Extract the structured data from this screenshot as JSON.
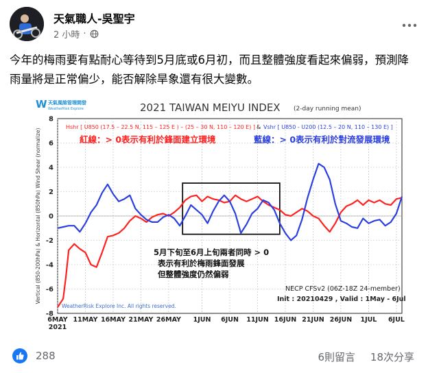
{
  "post": {
    "author": "天氣職人-吳聖宇",
    "time": "2 小時",
    "privacy_icon": "globe-icon",
    "more_icon": "more-dots-icon",
    "text": "今年的梅雨要有點耐心等待到5月底或6月初，而且整體強度看起來偏弱，預測降雨量將是正常偏少，能否解除旱象還有很大變數。"
  },
  "footer": {
    "like_count": "288",
    "comments": "6則留言",
    "shares": "18次分享"
  },
  "chart_data": {
    "type": "line",
    "logo_text": "天氣風險管理開發",
    "logo_sub": "WeatherRisk Explore",
    "title": "2021 TAIWAN MEIYU INDEX",
    "title_note": "(2-day running mean)",
    "ylabel": "Vertical (850-200hPa) & Horizontal (850hPa) Wind Shear (normalize)",
    "ylim": [
      -8,
      8
    ],
    "yticks": [
      "8",
      "6",
      "4",
      "2",
      "0",
      "-2",
      "-4",
      "-6",
      "-8"
    ],
    "yticks_values": [
      8,
      6,
      4,
      2,
      0,
      -2,
      -4,
      -6,
      -8
    ],
    "xlim": [
      0,
      62
    ],
    "xticks": [
      {
        "x": 0,
        "label": "6MAY"
      },
      {
        "x": 5,
        "label": "11MAY"
      },
      {
        "x": 10,
        "label": "16MAY"
      },
      {
        "x": 15,
        "label": "21MAY"
      },
      {
        "x": 20,
        "label": "26MAY"
      },
      {
        "x": 26,
        "label": "1JUN"
      },
      {
        "x": 31,
        "label": "6JUN"
      },
      {
        "x": 36,
        "label": "11JUN"
      },
      {
        "x": 41,
        "label": "16JUN"
      },
      {
        "x": 46,
        "label": "21JUN"
      },
      {
        "x": 51,
        "label": "26JUN"
      },
      {
        "x": 56,
        "label": "1JUL"
      },
      {
        "x": 61,
        "label": "6JUL"
      }
    ],
    "year_label": "2021",
    "legend_red": "Hshr [ U850 (17.5 – 22.5 N, 115 – 125 E ) – (25 – 30 N, 110 – 120 E) ]",
    "legend_amp": "&",
    "legend_blue": "Vshr [ U850 - U200 (12.5 – 20 N, 110 – 130 E) ]",
    "red_note": "紅線：> 0表示有利於鋒面建立環境",
    "blue_note": "藍線：> 0表示有利於對流發展環境",
    "box_note": [
      "5月下旬至6月上旬兩者同時 > 0",
      "表示有利於梅雨鋒面發展",
      "但整體強度仍然偏弱"
    ],
    "highlight_range": [
      22.5,
      40
    ],
    "highlight_y": [
      -1.5,
      2.7
    ],
    "model_note": "NECP CFSv2 (06Z-18Z 24-member)",
    "init_note": "Init : 20210429 , Valid : 1May - 6Jul",
    "credit": "WeatherRisk Explore Inc. All rights reserved.",
    "colors": {
      "red": "#ff2020",
      "blue": "#2b3fe0",
      "title": "#333333"
    },
    "series": [
      {
        "color": "red",
        "x": [
          0,
          1,
          1.5,
          2,
          3,
          4,
          5,
          6,
          7,
          8,
          9,
          10,
          11,
          12,
          13,
          14,
          15,
          16,
          17,
          18,
          19,
          20,
          21,
          22,
          23,
          24,
          25,
          26,
          27,
          28,
          29,
          30,
          31,
          32,
          33,
          34,
          35,
          36,
          37,
          38,
          39,
          40,
          41,
          42,
          43,
          44,
          45,
          46,
          47,
          48,
          49,
          50,
          51,
          52,
          53,
          54,
          55,
          56,
          57,
          58,
          59,
          60,
          61,
          62
        ],
        "values": [
          -7.5,
          -6.8,
          -5.0,
          -2.8,
          -2.3,
          -2.7,
          -3.0,
          -4.0,
          -4.2,
          -3.0,
          -1.7,
          -1.6,
          -1.4,
          -1.0,
          -0.4,
          0.0,
          -0.2,
          -0.5,
          -0.1,
          0.1,
          0.2,
          0.0,
          0.3,
          0.7,
          1.3,
          1.6,
          1.7,
          1.2,
          1.6,
          1.4,
          1.3,
          1.1,
          1.2,
          1.7,
          1.4,
          1.2,
          1.4,
          1.6,
          1.2,
          0.9,
          0.7,
          0.5,
          0.1,
          0.0,
          0.3,
          0.6,
          0.4,
          0.0,
          -0.2,
          -0.8,
          -1.3,
          -0.6,
          0.3,
          0.8,
          1.0,
          1.3,
          0.9,
          1.3,
          1.1,
          1.3,
          1.0,
          0.9,
          1.4,
          1.5
        ]
      },
      {
        "color": "blue",
        "x": [
          0,
          1,
          2,
          3,
          4,
          5,
          6,
          7,
          8,
          9,
          10,
          11,
          12,
          13,
          14,
          15,
          16,
          17,
          18,
          19,
          20,
          21,
          22,
          23,
          24,
          25,
          26,
          27,
          28,
          29,
          30,
          31,
          32,
          33,
          34,
          35,
          36,
          37,
          38,
          39,
          40,
          41,
          42,
          43,
          44,
          45,
          46,
          47,
          48,
          49,
          50,
          51,
          52,
          53,
          54,
          55,
          56,
          57,
          58,
          59,
          60,
          61,
          62
        ],
        "values": [
          -1.0,
          -0.9,
          -0.8,
          -0.8,
          -1.3,
          -0.6,
          0.3,
          0.9,
          1.9,
          2.6,
          1.8,
          1.2,
          1.4,
          1.7,
          0.6,
          0.1,
          -0.3,
          -0.5,
          -0.5,
          -0.1,
          0.1,
          -0.2,
          -0.8,
          0.0,
          0.9,
          0.5,
          0.1,
          -0.6,
          0.4,
          1.2,
          1.7,
          1.2,
          0.2,
          -1.4,
          -0.7,
          0.2,
          0.6,
          1.3,
          1.1,
          0.5,
          -0.6,
          -1.4,
          -2.0,
          -1.6,
          -0.3,
          1.5,
          3.0,
          4.3,
          4.0,
          3.0,
          1.0,
          -0.4,
          -0.6,
          -0.9,
          -1.0,
          -0.2,
          -0.6,
          -0.4,
          -0.3,
          -0.8,
          -0.5,
          0.2,
          1.6
        ]
      }
    ]
  }
}
